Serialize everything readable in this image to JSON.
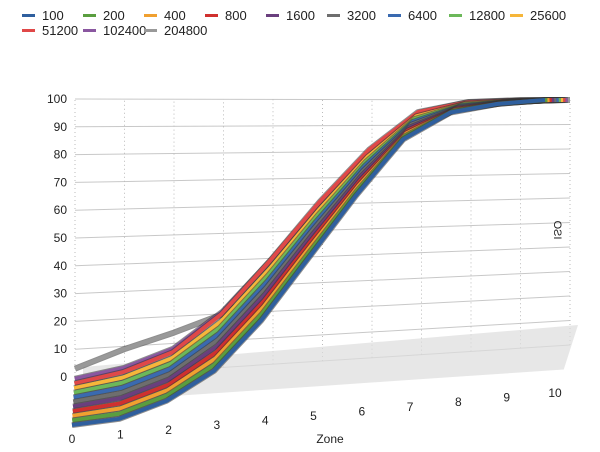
{
  "chart_data": {
    "type": "line",
    "style": "3d",
    "xlabel": "Zone",
    "zlabel": "ISO",
    "ylabel": "",
    "x": [
      0,
      1,
      2,
      3,
      4,
      5,
      6,
      7,
      8,
      9,
      10
    ],
    "x_tick_labels": [
      "0",
      "1",
      "2",
      "3",
      "4",
      "5",
      "6",
      "7",
      "8",
      "9",
      "10"
    ],
    "y_tick_labels": [
      "0",
      "10",
      "20",
      "30",
      "40",
      "50",
      "60",
      "70",
      "80",
      "90",
      "100"
    ],
    "ylim": [
      0,
      100
    ],
    "grid": true,
    "legend_placement": "top-left",
    "series": [
      {
        "name": "100",
        "color": "#2f5f9e",
        "values": [
          1,
          2,
          7,
          16,
          32,
          52,
          72,
          90,
          98,
          99.8,
          100
        ]
      },
      {
        "name": "200",
        "color": "#5a9e3f",
        "values": [
          1,
          2.2,
          7.3,
          16.7,
          33,
          53.1,
          73,
          90.6,
          98.2,
          99.8,
          100
        ]
      },
      {
        "name": "400",
        "color": "#f0a030",
        "values": [
          1,
          2.4,
          7.6,
          17.4,
          34,
          54.2,
          74,
          91.2,
          98.3,
          99.8,
          100
        ]
      },
      {
        "name": "800",
        "color": "#d0302e",
        "values": [
          1,
          2.6,
          7.9,
          18.1,
          35,
          55.3,
          75,
          91.8,
          98.5,
          99.9,
          100
        ]
      },
      {
        "name": "1600",
        "color": "#6a3f7e",
        "values": [
          1,
          2.8,
          8.2,
          18.8,
          36,
          56.4,
          76,
          92.4,
          98.6,
          99.9,
          100
        ]
      },
      {
        "name": "3200",
        "color": "#6e6e6e",
        "values": [
          1,
          3,
          8.5,
          19.5,
          37,
          57.5,
          77,
          93,
          98.8,
          99.9,
          100
        ]
      },
      {
        "name": "6400",
        "color": "#3a6ab0",
        "values": [
          1,
          3.2,
          8.8,
          20.2,
          38,
          58.6,
          78,
          93.6,
          98.9,
          99.9,
          100
        ]
      },
      {
        "name": "12800",
        "color": "#6cb85a",
        "values": [
          1,
          3.4,
          9.1,
          20.9,
          39,
          59.7,
          79,
          94.2,
          99.1,
          99.9,
          100
        ]
      },
      {
        "name": "25600",
        "color": "#f6b63a",
        "values": [
          1,
          3.6,
          9.4,
          21.6,
          40,
          60.8,
          80,
          94.8,
          99.2,
          100,
          100
        ]
      },
      {
        "name": "51200",
        "color": "#e04848",
        "values": [
          1,
          4,
          10,
          23,
          42,
          63,
          82,
          96,
          99.5,
          100,
          100
        ]
      },
      {
        "name": "102400",
        "color": "#8a57a0",
        "values": [
          1,
          3.8,
          9.7,
          22.3,
          41,
          61.9,
          81,
          95.4,
          99.4,
          100,
          100
        ]
      },
      {
        "name": "204800",
        "color": "#999999",
        "values": [
          3,
          9,
          14,
          20,
          30,
          52,
          75,
          92,
          98,
          99.8,
          100
        ]
      }
    ]
  }
}
